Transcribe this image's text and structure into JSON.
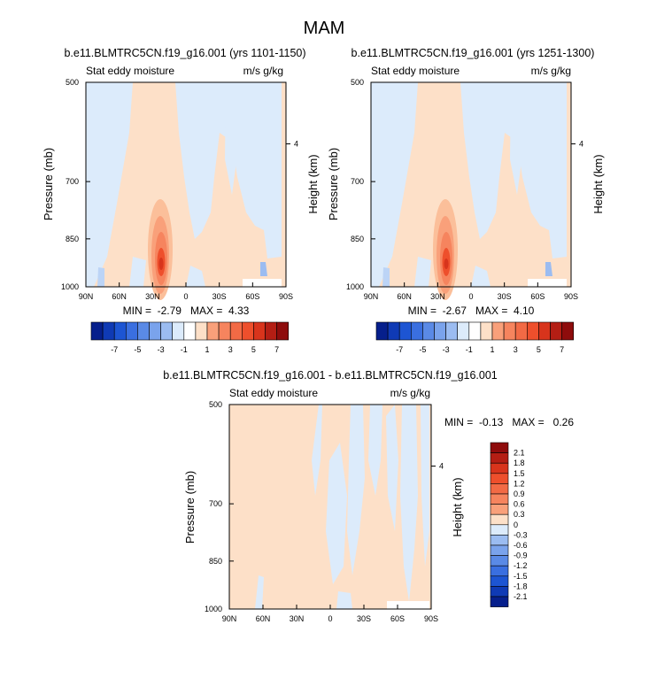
{
  "page_title": "MAM",
  "colors": {
    "pos": [
      "#fde0c8",
      "#fbbf9a",
      "#f9a07a",
      "#f6845e",
      "#f26a45",
      "#ee4f2c",
      "#d8341c",
      "#b41e14",
      "#8e0c0c"
    ],
    "neg": [
      "#dcebfb",
      "#bcd4f6",
      "#9bbcf1",
      "#7aa3ec",
      "#5a8ae6",
      "#3a6fe0",
      "#1d55d3",
      "#0f3ab5",
      "#061f8c"
    ]
  },
  "chart_data": [
    {
      "type": "heatmap",
      "title": "b.e11.BLMTRC5CN.f19_g16.001 (yrs 1101-1150)",
      "left_label": "Stat eddy moisture",
      "right_label": "m/s g/kg",
      "ylabel": "Pressure (mb)",
      "ylabel_right": "Height (km)",
      "x_ticks": [
        "90N",
        "60N",
        "30N",
        "0",
        "30S",
        "60S",
        "90S"
      ],
      "y_ticks": [
        "500",
        "700",
        "850",
        "1000"
      ],
      "y_ticks_right": [
        "4"
      ],
      "stats": "MIN =  -2.79   MAX =  4.33",
      "colorbar_labels": [
        "-7",
        "-5",
        "-3",
        "-1",
        "1",
        "3",
        "5",
        "7"
      ],
      "peak": {
        "lat": "20N",
        "pressure": 925,
        "value": 4.33
      }
    },
    {
      "type": "heatmap",
      "title": "b.e11.BLMTRC5CN.f19_g16.001 (yrs 1251-1300)",
      "left_label": "Stat eddy moisture",
      "right_label": "m/s g/kg",
      "ylabel": "Pressure (mb)",
      "ylabel_right": "Height (km)",
      "x_ticks": [
        "90N",
        "60N",
        "30N",
        "0",
        "30S",
        "60S",
        "90S"
      ],
      "y_ticks": [
        "500",
        "700",
        "850",
        "1000"
      ],
      "y_ticks_right": [
        "4"
      ],
      "stats": "MIN =  -2.67   MAX =  4.10",
      "colorbar_labels": [
        "-7",
        "-5",
        "-3",
        "-1",
        "1",
        "3",
        "5",
        "7"
      ],
      "peak": {
        "lat": "20N",
        "pressure": 925,
        "value": 4.1
      }
    },
    {
      "type": "heatmap",
      "title": "b.e11.BLMTRC5CN.f19_g16.001 - b.e11.BLMTRC5CN.f19_g16.001",
      "left_label": "Stat eddy moisture",
      "right_label": "m/s g/kg",
      "ylabel": "Pressure (mb)",
      "ylabel_right": "Height (km)",
      "x_ticks": [
        "90N",
        "60N",
        "30N",
        "0",
        "30S",
        "60S",
        "90S"
      ],
      "y_ticks": [
        "500",
        "700",
        "850",
        "1000"
      ],
      "y_ticks_right": [
        "4"
      ],
      "stats": "MIN =  -0.13   MAX =   0.26",
      "colorbar_labels": [
        "2.1",
        "1.8",
        "1.5",
        "1.2",
        "0.9",
        "0.6",
        "0.3",
        "0",
        "-0.3",
        "-0.6",
        "-0.9",
        "-1.2",
        "-1.5",
        "-1.8",
        "-2.1"
      ]
    }
  ]
}
